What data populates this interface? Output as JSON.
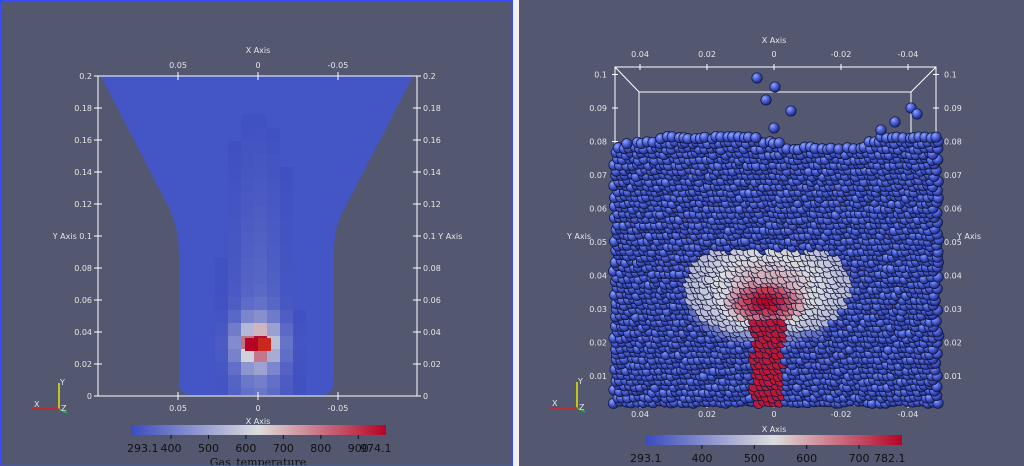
{
  "left_view": {
    "x_axis_title_top": "X Axis",
    "x_axis_title_bottom": "X Axis",
    "y_axis_title_left": "Y Axis",
    "y_axis_title_right": "Y Axis",
    "x_ticks": [
      "0.05",
      "0",
      "-0.05"
    ],
    "y_ticks": [
      "0",
      "0.02",
      "0.04",
      "0.06",
      "0.08",
      "0.1",
      "0.12",
      "0.14",
      "0.16",
      "0.18",
      "0.2"
    ],
    "colorbar": {
      "title": "Gas_temperature",
      "min_label": "293.1",
      "labels": [
        "400",
        "500",
        "600",
        "700",
        "800",
        "900"
      ],
      "max_label": "974.1",
      "range": [
        293.1,
        974.1
      ]
    },
    "orientation": {
      "x": "X",
      "y": "Y",
      "z": "Z"
    }
  },
  "right_view": {
    "x_axis_title_top": "X Axis",
    "x_axis_title_bottom": "X Axis",
    "y_axis_title_left": "Y Axis",
    "y_axis_title_right": "Y Axis",
    "x_ticks": [
      "0.04",
      "0.02",
      "0",
      "-0.02",
      "-0.04"
    ],
    "y_ticks": [
      "0.01",
      "0.02",
      "0.03",
      "0.04",
      "0.05",
      "0.06",
      "0.07",
      "0.08",
      "0.09",
      "0.1"
    ],
    "colorbar": {
      "min_label": "293.1",
      "labels": [
        "400",
        "500",
        "600",
        "700"
      ],
      "max_label": "782.1",
      "range": [
        293.1,
        782.1
      ]
    },
    "orientation": {
      "x": "X",
      "y": "Y",
      "z": "Z"
    }
  },
  "colors": {
    "background": "#535770",
    "cool": "#3b4cc0",
    "warm": "#b40426"
  }
}
